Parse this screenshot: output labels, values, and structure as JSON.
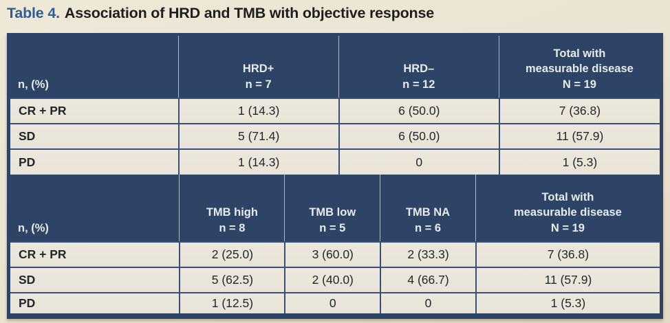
{
  "title": {
    "label": "Table 4.",
    "text": "Association of HRD and TMB with objective response"
  },
  "colors": {
    "header_bg": "#2d4467",
    "grid_line": "#35507c",
    "cell_bg": "#e9e4d8",
    "page_bg": "#ece4d1",
    "title_accent": "#2d5f94",
    "header_text": "#e8eaee",
    "body_text": "#24262a"
  },
  "hrd_table": {
    "corner_label": "n, (%)",
    "columns": [
      {
        "line1": "HRD+",
        "line2": "n = 7"
      },
      {
        "line1": "HRD–",
        "line2": "n = 12"
      },
      {
        "line1": "Total with",
        "line2": "measurable disease",
        "line3": "N = 19"
      }
    ],
    "rows": [
      {
        "label": "CR + PR",
        "values": [
          "1 (14.3)",
          "6 (50.0)",
          "7 (36.8)"
        ]
      },
      {
        "label": "SD",
        "values": [
          "5 (71.4)",
          "6 (50.0)",
          "11 (57.9)"
        ]
      },
      {
        "label": "PD",
        "values": [
          "1 (14.3)",
          "0",
          "1 (5.3)"
        ]
      }
    ]
  },
  "tmb_table": {
    "corner_label": "n, (%)",
    "columns": [
      {
        "line1": "TMB high",
        "line2": "n = 8"
      },
      {
        "line1": "TMB low",
        "line2": "n = 5"
      },
      {
        "line1": "TMB NA",
        "line2": "n = 6"
      },
      {
        "line1": "Total with",
        "line2": "measurable disease",
        "line3": "N = 19"
      }
    ],
    "rows": [
      {
        "label": "CR + PR",
        "values": [
          "2 (25.0)",
          "3 (60.0)",
          "2 (33.3)",
          "7 (36.8)"
        ]
      },
      {
        "label": "SD",
        "values": [
          "5 (62.5)",
          "2 (40.0)",
          "4 (66.7)",
          "11 (57.9)"
        ]
      },
      {
        "label": "PD",
        "values": [
          "1 (12.5)",
          "0",
          "0",
          "1 (5.3)"
        ]
      }
    ]
  }
}
